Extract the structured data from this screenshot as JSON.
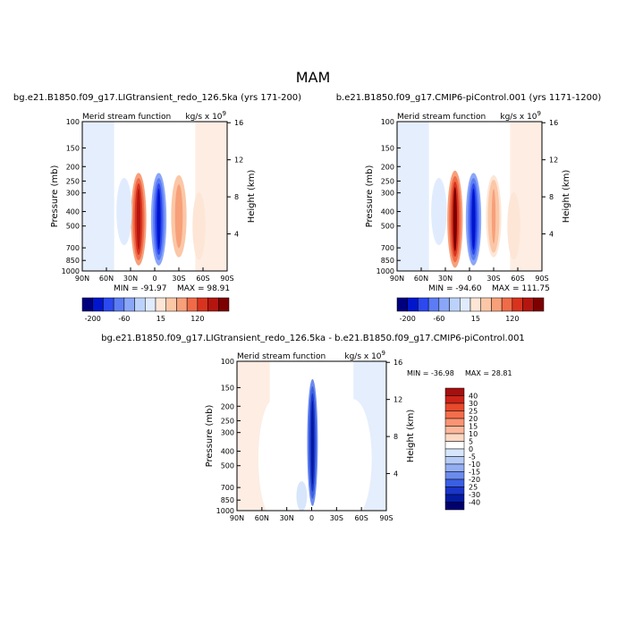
{
  "figure": {
    "season": "MAM",
    "panel_left_title": "bg.e21.B1850.f09_g17.LIGtransient_redo_126.5ka (yrs 171-200)",
    "panel_right_title": "b.e21.B1850.f09_g17.CMIP6-piControl.001 (yrs 1171-1200)",
    "panel_diff_title": "bg.e21.B1850.f09_g17.LIGtransient_redo_126.5ka - b.e21.B1850.f09_g17.CMIP6-piControl.001"
  },
  "chart_data": [
    {
      "type": "heatmap",
      "subtitle": "Merid stream function",
      "units": "kg/s x 10",
      "units_exp": "9",
      "ylabel": "Pressure (mb)",
      "y2label": "Height (km)",
      "x_ticks": [
        "90N",
        "60N",
        "30N",
        "0",
        "30S",
        "60S",
        "90S"
      ],
      "y_ticks": [
        "100",
        "150",
        "200",
        "250",
        "300",
        "400",
        "500",
        "700",
        "850",
        "1000"
      ],
      "y2_ticks": [
        "16",
        "12",
        "8",
        "4"
      ],
      "stats": {
        "min_label": "MIN = -91.97",
        "max_label": "MAX = 98.91",
        "min": -91.97,
        "max": 98.91
      },
      "colorbar_labels": [
        "-200",
        "-60",
        "15",
        "120"
      ],
      "cells": [
        {
          "lat": 20,
          "p": 450,
          "dlat": 6,
          "dlogp": 0.62,
          "value": 90
        },
        {
          "lat": 38,
          "p": 400,
          "dlat": 6,
          "dlogp": 0.45,
          "value": -12
        },
        {
          "lat": -5,
          "p": 450,
          "dlat": 6,
          "dlogp": 0.62,
          "value": -90
        },
        {
          "lat": -30,
          "p": 430,
          "dlat": 6,
          "dlogp": 0.55,
          "value": 45
        },
        {
          "lat": -55,
          "p": 500,
          "dlat": 5,
          "dlogp": 0.45,
          "value": 8
        }
      ]
    },
    {
      "type": "heatmap",
      "subtitle": "Merid stream function",
      "units": "kg/s x 10",
      "units_exp": "9",
      "ylabel": "Pressure (mb)",
      "y2label": "Height (km)",
      "x_ticks": [
        "90N",
        "60N",
        "30N",
        "0",
        "30S",
        "60S",
        "90S"
      ],
      "y_ticks": [
        "100",
        "150",
        "200",
        "250",
        "300",
        "400",
        "500",
        "700",
        "850",
        "1000"
      ],
      "y2_ticks": [
        "16",
        "12",
        "8",
        "4"
      ],
      "stats": {
        "min_label": "MIN = -94.60",
        "max_label": "MAX = 111.75",
        "min": -94.6,
        "max": 111.75
      },
      "colorbar_labels": [
        "-200",
        "-60",
        "15",
        "120"
      ],
      "cells": [
        {
          "lat": 18,
          "p": 450,
          "dlat": 6,
          "dlogp": 0.65,
          "value": 105
        },
        {
          "lat": 38,
          "p": 400,
          "dlat": 6,
          "dlogp": 0.45,
          "value": -15
        },
        {
          "lat": -5,
          "p": 450,
          "dlat": 6,
          "dlogp": 0.62,
          "value": -90
        },
        {
          "lat": -30,
          "p": 430,
          "dlat": 6,
          "dlogp": 0.55,
          "value": 35
        },
        {
          "lat": -55,
          "p": 500,
          "dlat": 5,
          "dlogp": 0.45,
          "value": 10
        }
      ]
    },
    {
      "type": "heatmap",
      "subtitle": "Merid stream function",
      "units": "kg/s x 10",
      "units_exp": "9",
      "ylabel": "Pressure (mb)",
      "y2label": "Height (km)",
      "x_ticks": [
        "90N",
        "60N",
        "30N",
        "0",
        "30S",
        "60S",
        "90S"
      ],
      "y_ticks": [
        "100",
        "150",
        "200",
        "250",
        "300",
        "400",
        "500",
        "700",
        "850",
        "1000"
      ],
      "y2_ticks": [
        "16",
        "12",
        "8",
        "4"
      ],
      "stats": {
        "min_label": "MIN = -36.98",
        "max_label": "MAX = 28.81",
        "min": -36.98,
        "max": 28.81
      },
      "colorbar_labels": [
        "40",
        "30",
        "25",
        "20",
        "15",
        "10",
        "5",
        "0",
        "-5",
        "-10",
        "-15",
        "-20",
        "25",
        "-30",
        "-40"
      ],
      "cells": [
        {
          "lat": -1,
          "p": 350,
          "dlat": 4,
          "dlogp": 0.85,
          "value": -35
        },
        {
          "lat": 12,
          "p": 800,
          "dlat": 4,
          "dlogp": 0.2,
          "value": -5
        },
        {
          "lat": 45,
          "p": 450,
          "dlat": 12,
          "dlogp": 0.8,
          "value": 2
        },
        {
          "lat": -50,
          "p": 450,
          "dlat": 14,
          "dlogp": 0.8,
          "value": 2
        }
      ]
    }
  ],
  "colors": {
    "background": "#ffffff",
    "cb12": [
      "#00007f",
      "#0016cc",
      "#2c48f0",
      "#5c7cf4",
      "#8aa6f7",
      "#bcd2fb",
      "#e0ecfe",
      "#fde6d6",
      "#fbc7a6",
      "#f7a07a",
      "#f06b48",
      "#d8331f",
      "#b4150f",
      "#7d0000"
    ],
    "cb_diff": [
      "#a50f0f",
      "#cc2419",
      "#e84a2c",
      "#f46e4b",
      "#f99474",
      "#fcb79b",
      "#fdd9c3",
      "#ffffff",
      "#d8e6fb",
      "#b7cbf7",
      "#93aef3",
      "#6b8bed",
      "#3b5fe3",
      "#1a35c9",
      "#041aa0",
      "#00006e"
    ]
  }
}
